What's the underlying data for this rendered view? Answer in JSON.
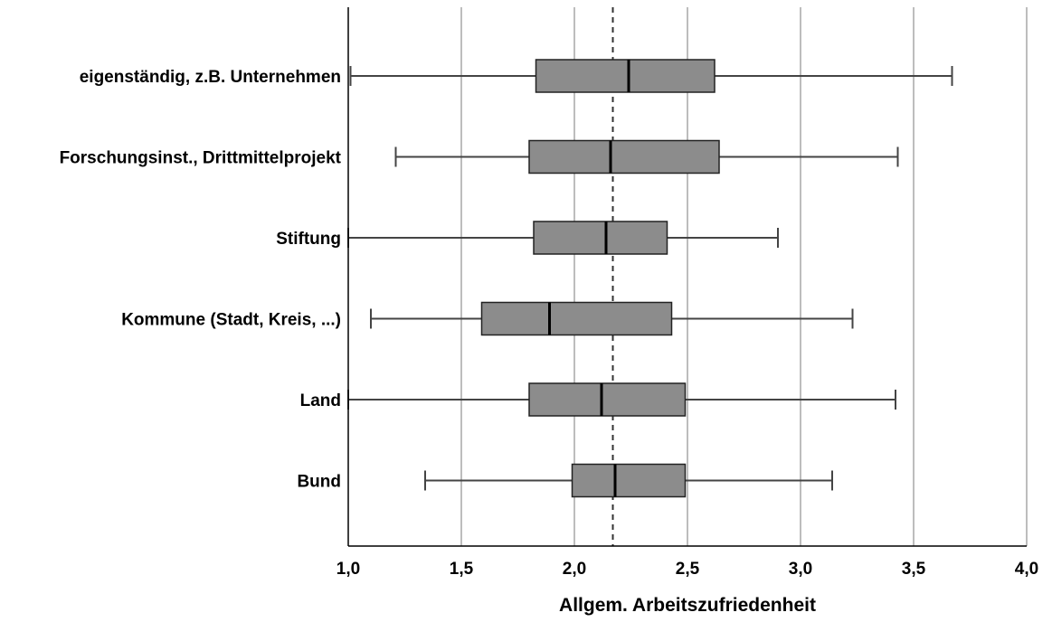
{
  "chart_data": {
    "type": "boxplot",
    "orientation": "horizontal",
    "xlabel": "Allgem. Arbeitszufriedenheit",
    "xlim": [
      1.0,
      4.0
    ],
    "xticks": [
      1.0,
      1.5,
      2.0,
      2.5,
      3.0,
      3.5,
      4.0
    ],
    "xtick_labels": [
      "1,0",
      "1,5",
      "2,0",
      "2,5",
      "3,0",
      "3,5",
      "4,0"
    ],
    "grid": "vertical",
    "reference_line": {
      "value": 2.17,
      "style": "dashed"
    },
    "colors": {
      "box_fill": "#8c8c8c",
      "grid": "#bdbdbd",
      "line": "#000000"
    },
    "categories": [
      "eigenständig, z.B. Unternehmen",
      "Forschungsinst., Drittmittelprojekt",
      "Stiftung",
      "Kommune (Stadt, Kreis, ...)",
      "Land",
      "Bund"
    ],
    "boxes": [
      {
        "min": 1.01,
        "q1": 1.83,
        "median": 2.24,
        "q3": 2.62,
        "max": 3.67
      },
      {
        "min": 1.21,
        "q1": 1.8,
        "median": 2.16,
        "q3": 2.64,
        "max": 3.43
      },
      {
        "min": 1.0,
        "q1": 1.82,
        "median": 2.14,
        "q3": 2.41,
        "max": 2.9
      },
      {
        "min": 1.1,
        "q1": 1.59,
        "median": 1.89,
        "q3": 2.43,
        "max": 3.23
      },
      {
        "min": 1.0,
        "q1": 1.8,
        "median": 2.12,
        "q3": 2.49,
        "max": 3.42
      },
      {
        "min": 1.34,
        "q1": 1.99,
        "median": 2.18,
        "q3": 2.49,
        "max": 3.14
      }
    ]
  }
}
